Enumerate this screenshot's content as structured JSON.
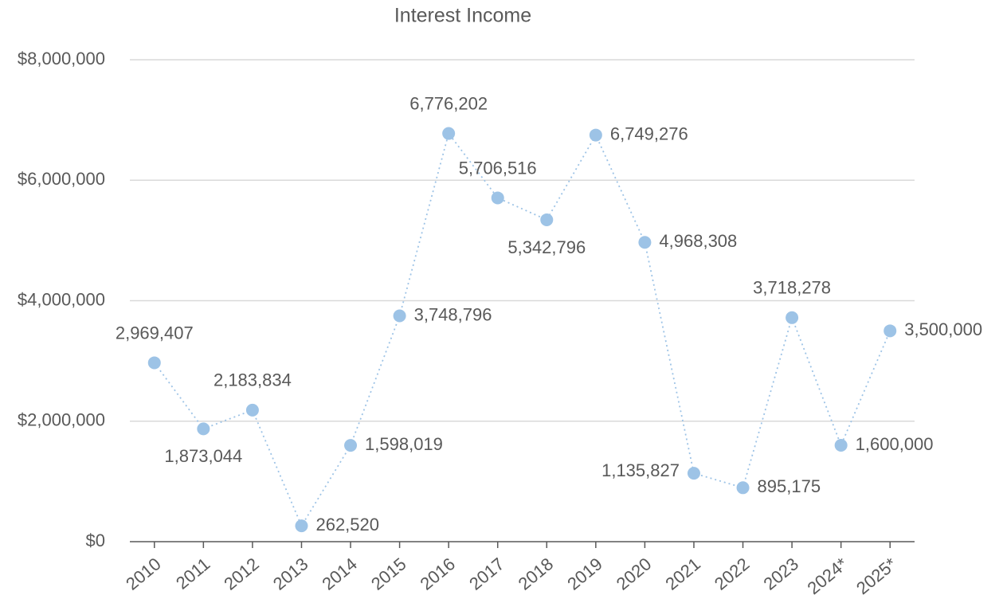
{
  "chart_data": {
    "type": "line",
    "title": "Interest Income",
    "categories": [
      "2010",
      "2011",
      "2012",
      "2013",
      "2014",
      "2015",
      "2016",
      "2017",
      "2018",
      "2019",
      "2020",
      "2021",
      "2022",
      "2023",
      "2024*",
      "2025*"
    ],
    "series": [
      {
        "name": "Interest Income",
        "color": "#9dc3e6",
        "values": [
          2969407,
          1873044,
          2183834,
          262520,
          1598019,
          3748796,
          6776202,
          5706516,
          5342796,
          6749276,
          4968308,
          1135827,
          895175,
          3718278,
          1600000,
          3500000
        ],
        "value_labels": [
          "2,969,407",
          "1,873,044",
          "2,183,834",
          "262,520",
          "1,598,019",
          "3,748,796",
          "6,776,202",
          "5,706,516",
          "5,342,796",
          "6,749,276",
          "4,968,308",
          "1,135,827",
          "895,175",
          "3,718,278",
          "1,600,000",
          "3,500,000"
        ]
      }
    ],
    "ylim": [
      0,
      8000000
    ],
    "yticks": [
      {
        "value": 0,
        "label": "$0"
      },
      {
        "value": 2000000,
        "label": "$2,000,000"
      },
      {
        "value": 4000000,
        "label": "$4,000,000"
      },
      {
        "value": 6000000,
        "label": "$6,000,000"
      },
      {
        "value": 8000000,
        "label": "$8,000,000"
      }
    ],
    "grid": true
  }
}
